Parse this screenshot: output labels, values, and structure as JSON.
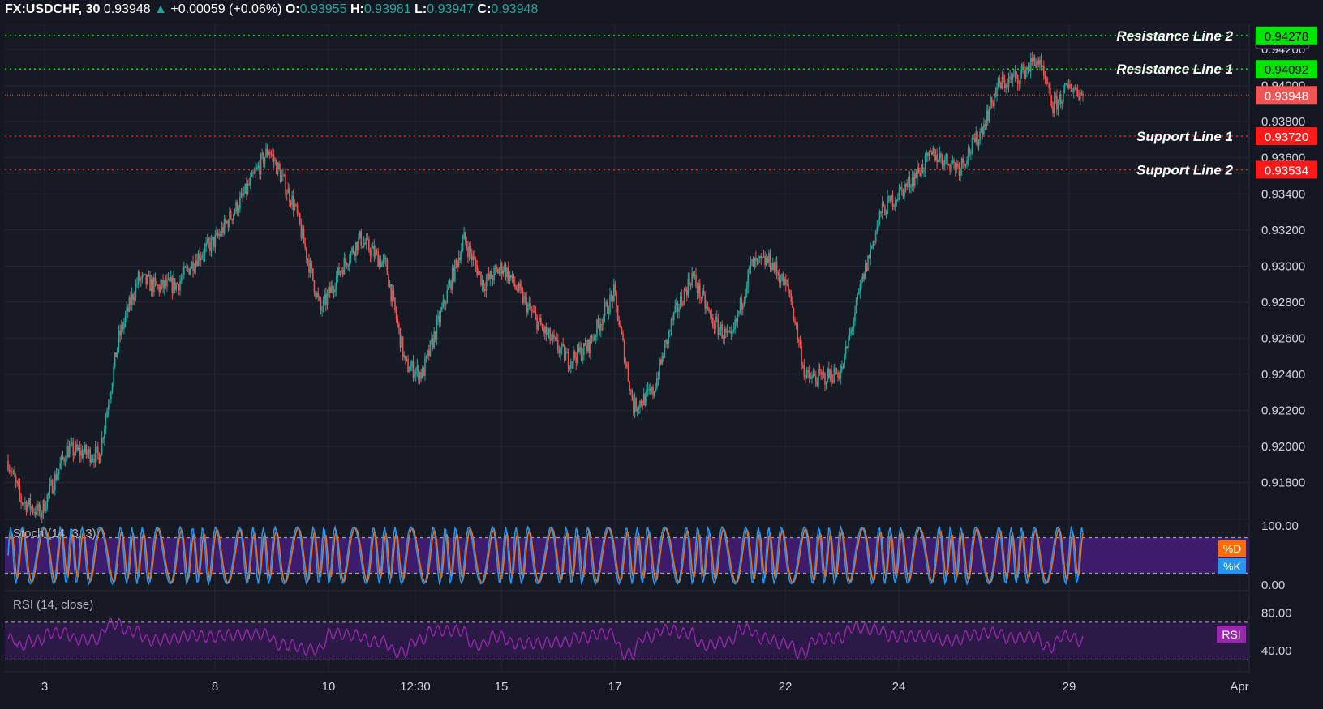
{
  "header": {
    "symbol": "FX:USDCHF, 30",
    "last": "0.93948",
    "change": "+0.00059 (+0.06%)",
    "o_label": "O:",
    "o": "0.93955",
    "h_label": "H:",
    "h": "0.93981",
    "l_label": "L:",
    "l": "0.93947",
    "c_label": "C:",
    "c": "0.93948"
  },
  "colors": {
    "background": "#131722",
    "panel": "#161a25",
    "grid": "#232734",
    "up": "#26a69a",
    "down": "#ef5350",
    "resistance": "#00e600",
    "support": "#ff1a1a",
    "price": "#f15454",
    "stoch_band": "#3d1c6d",
    "stoch_k": "#2196f3",
    "stoch_d": "#ff6d00",
    "rsi_line": "#9c27b0",
    "rsi_band": "#2a1a45"
  },
  "chart_data": {
    "type": "candlestick",
    "symbol": "FX:USDCHF",
    "interval": "30",
    "currency": "CHF",
    "price_axis_ticks": [
      "0.94200",
      "0.94000",
      "0.93800",
      "0.93600",
      "0.93400",
      "0.93200",
      "0.93000",
      "0.92800",
      "0.92600",
      "0.92400",
      "0.92200",
      "0.92000",
      "0.91800"
    ],
    "ylim": [
      0.916,
      0.9434
    ],
    "x_axis_ticks": [
      "3",
      "8",
      "10",
      "12:30",
      "15",
      "17",
      "22",
      "24",
      "29",
      "Apr"
    ],
    "last_price": 0.93948,
    "last_price_label": "0.93948",
    "price_path_anchors": [
      {
        "t": 0,
        "p": 0.9192
      },
      {
        "t": 10,
        "p": 0.917
      },
      {
        "t": 25,
        "p": 0.9163
      },
      {
        "t": 45,
        "p": 0.9198
      },
      {
        "t": 70,
        "p": 0.9195
      },
      {
        "t": 85,
        "p": 0.926
      },
      {
        "t": 100,
        "p": 0.9293
      },
      {
        "t": 115,
        "p": 0.9288
      },
      {
        "t": 130,
        "p": 0.929
      },
      {
        "t": 145,
        "p": 0.9305
      },
      {
        "t": 160,
        "p": 0.9315
      },
      {
        "t": 180,
        "p": 0.9338
      },
      {
        "t": 200,
        "p": 0.9365
      },
      {
        "t": 220,
        "p": 0.9333
      },
      {
        "t": 240,
        "p": 0.9275
      },
      {
        "t": 255,
        "p": 0.9298
      },
      {
        "t": 270,
        "p": 0.9315
      },
      {
        "t": 290,
        "p": 0.93
      },
      {
        "t": 305,
        "p": 0.9245
      },
      {
        "t": 318,
        "p": 0.924
      },
      {
        "t": 335,
        "p": 0.928
      },
      {
        "t": 350,
        "p": 0.9315
      },
      {
        "t": 365,
        "p": 0.929
      },
      {
        "t": 380,
        "p": 0.93
      },
      {
        "t": 395,
        "p": 0.9282
      },
      {
        "t": 410,
        "p": 0.9265
      },
      {
        "t": 430,
        "p": 0.9248
      },
      {
        "t": 445,
        "p": 0.9255
      },
      {
        "t": 465,
        "p": 0.9285
      },
      {
        "t": 480,
        "p": 0.9222
      },
      {
        "t": 495,
        "p": 0.923
      },
      {
        "t": 510,
        "p": 0.927
      },
      {
        "t": 525,
        "p": 0.9295
      },
      {
        "t": 540,
        "p": 0.927
      },
      {
        "t": 555,
        "p": 0.9258
      },
      {
        "t": 570,
        "p": 0.93
      },
      {
        "t": 585,
        "p": 0.9303
      },
      {
        "t": 600,
        "p": 0.9285
      },
      {
        "t": 612,
        "p": 0.9238
      },
      {
        "t": 625,
        "p": 0.9238
      },
      {
        "t": 640,
        "p": 0.9242
      },
      {
        "t": 655,
        "p": 0.929
      },
      {
        "t": 670,
        "p": 0.933
      },
      {
        "t": 690,
        "p": 0.9345
      },
      {
        "t": 710,
        "p": 0.9362
      },
      {
        "t": 730,
        "p": 0.9355
      },
      {
        "t": 745,
        "p": 0.9372
      },
      {
        "t": 760,
        "p": 0.94
      },
      {
        "t": 775,
        "p": 0.9405
      },
      {
        "t": 790,
        "p": 0.9415
      },
      {
        "t": 802,
        "p": 0.9388
      },
      {
        "t": 815,
        "p": 0.94
      },
      {
        "t": 825,
        "p": 0.93948
      }
    ],
    "lines": [
      {
        "name": "Resistance Line 2",
        "value": 0.94278,
        "label": "0.94278",
        "kind": "resistance"
      },
      {
        "name": "Resistance Line 1",
        "value": 0.94092,
        "label": "0.94092",
        "kind": "resistance"
      },
      {
        "name": "Support Line 1",
        "value": 0.9372,
        "label": "0.93720",
        "kind": "support"
      },
      {
        "name": "Support Line 2",
        "value": 0.93534,
        "label": "0.93534",
        "kind": "support"
      }
    ],
    "stoch": {
      "title": "Stoch (14, 3, 3)",
      "axis_ticks": [
        "100.00",
        "0.00"
      ],
      "ylim": [
        0,
        100
      ],
      "upper_band": 80,
      "lower_band": 20,
      "legend": [
        "%D",
        "%K"
      ]
    },
    "rsi": {
      "title": "RSI (14, close)",
      "axis_ticks": [
        "80.00",
        "40.00"
      ],
      "ylim": [
        20,
        100
      ],
      "upper_band": 70,
      "lower_band": 30,
      "legend": "RSI"
    }
  }
}
